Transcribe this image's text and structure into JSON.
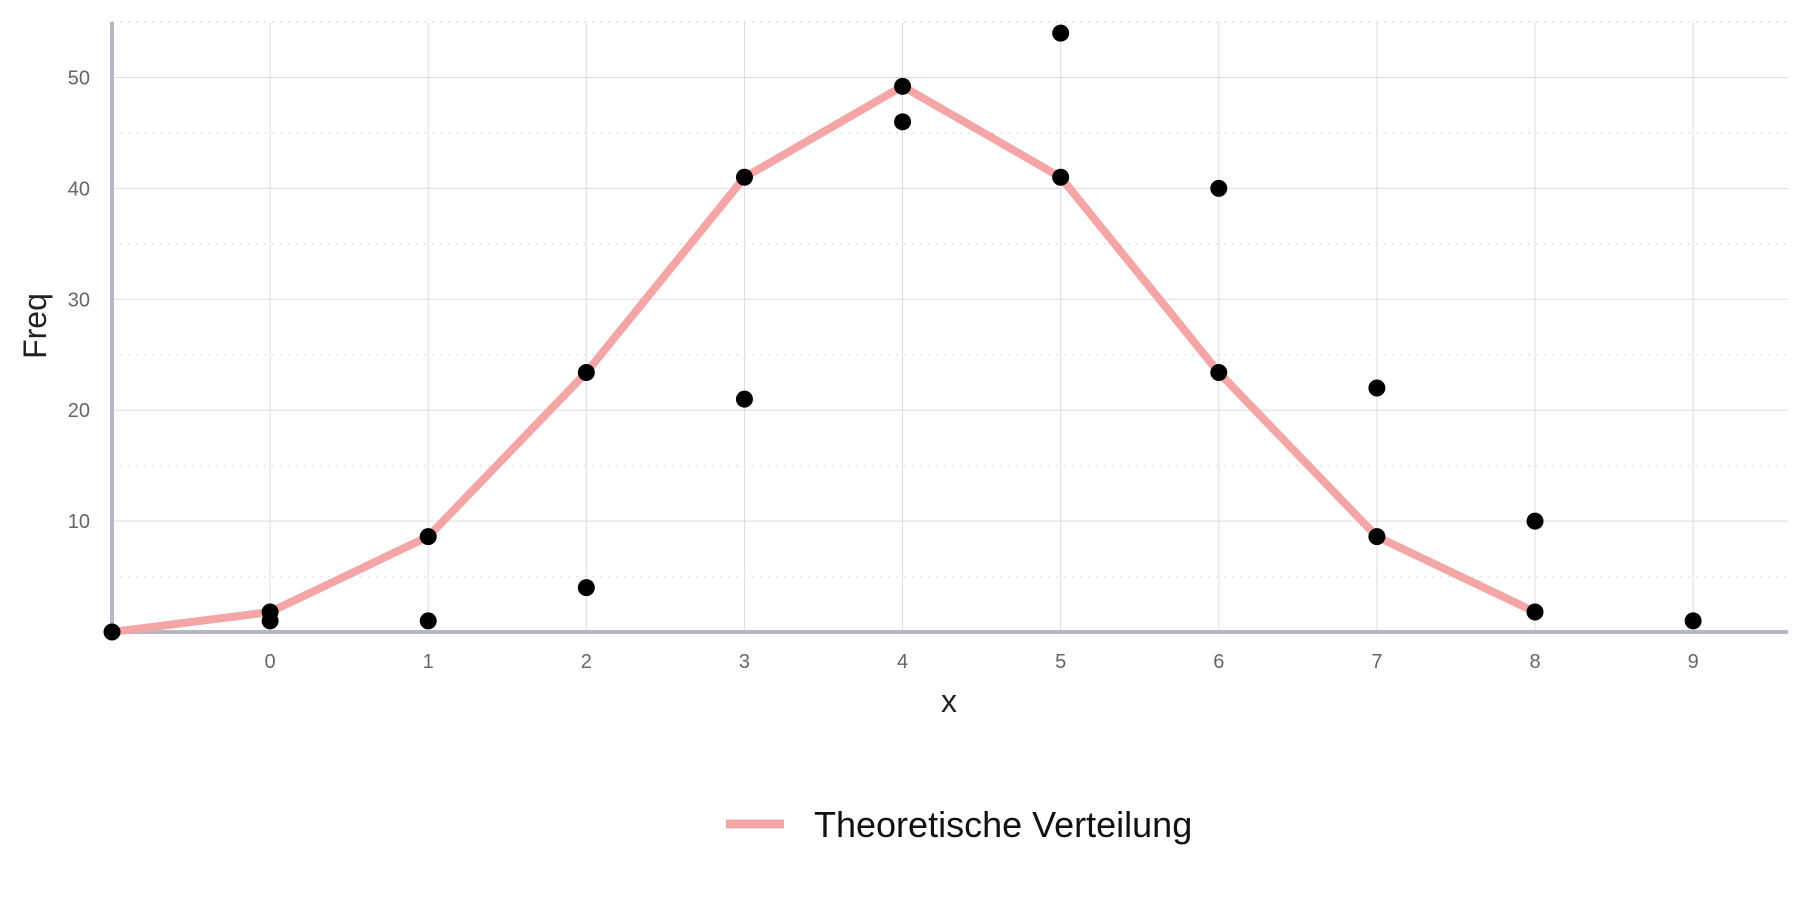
{
  "chart_data": {
    "type": "scatter",
    "title": "",
    "xlabel": "x",
    "ylabel": "Freq",
    "xlim": [
      -1,
      9.6
    ],
    "ylim": [
      0,
      55
    ],
    "x_ticks": [
      0,
      1,
      2,
      3,
      4,
      5,
      6,
      7,
      8,
      9
    ],
    "y_ticks": [
      10,
      20,
      30,
      40,
      50
    ],
    "grid": true,
    "legend_position": "bottom",
    "series": [
      {
        "type": "scatter",
        "color": "#000000",
        "points": [
          {
            "x": -1,
            "y": 0
          },
          {
            "x": 0,
            "y": 1
          },
          {
            "x": 1,
            "y": 1
          },
          {
            "x": 2,
            "y": 4
          },
          {
            "x": 3,
            "y": 21
          },
          {
            "x": 4,
            "y": 46
          },
          {
            "x": 5,
            "y": 54
          },
          {
            "x": 6,
            "y": 40
          },
          {
            "x": 7,
            "y": 22
          },
          {
            "x": 8,
            "y": 10
          },
          {
            "x": 9,
            "y": 1
          }
        ]
      },
      {
        "type": "scatter",
        "color": "#000000",
        "points": [
          {
            "x": 0,
            "y": 1.8
          },
          {
            "x": 1,
            "y": 8.6
          },
          {
            "x": 2,
            "y": 23.4
          },
          {
            "x": 3,
            "y": 41
          },
          {
            "x": 4,
            "y": 49.2
          },
          {
            "x": 5,
            "y": 41
          },
          {
            "x": 6,
            "y": 23.4
          },
          {
            "x": 7,
            "y": 8.6
          },
          {
            "x": 8,
            "y": 1.8
          }
        ]
      },
      {
        "type": "line",
        "name": "Theoretische Verteilung",
        "color": "#f4a6a6",
        "points": [
          {
            "x": -1,
            "y": 0
          },
          {
            "x": 0,
            "y": 1.8
          },
          {
            "x": 1,
            "y": 8.6
          },
          {
            "x": 2,
            "y": 23.4
          },
          {
            "x": 3,
            "y": 41
          },
          {
            "x": 4,
            "y": 49.2
          },
          {
            "x": 5,
            "y": 41
          },
          {
            "x": 6,
            "y": 23.4
          },
          {
            "x": 7,
            "y": 8.6
          },
          {
            "x": 8,
            "y": 1.8
          }
        ]
      }
    ],
    "legend": [
      {
        "label": "Theoretische Verteilung",
        "color": "#f4a6a6"
      }
    ]
  }
}
